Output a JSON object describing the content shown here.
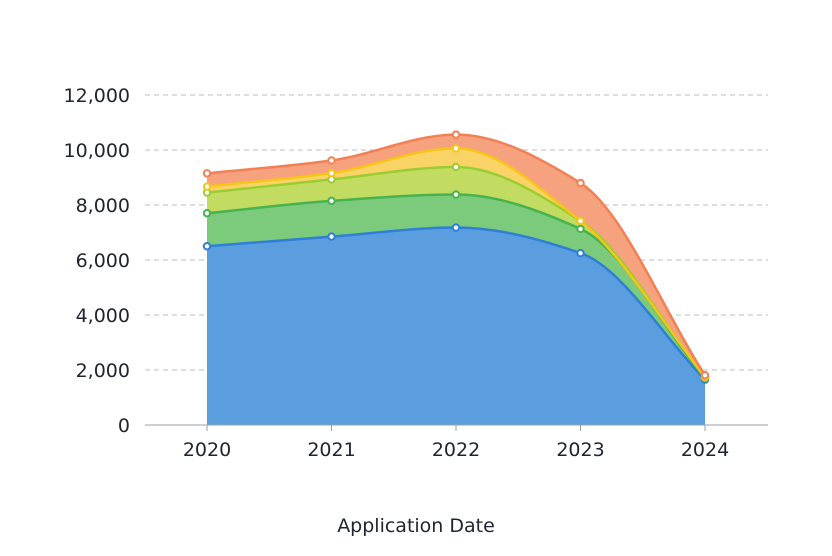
{
  "chart_data": {
    "type": "area",
    "stacked": true,
    "smooth": true,
    "title": "",
    "xlabel": "Application Date",
    "ylabel": "",
    "categories": [
      "2020",
      "2021",
      "2022",
      "2023",
      "2024"
    ],
    "ylim": [
      0,
      12000
    ],
    "yticks": [
      0,
      2000,
      4000,
      6000,
      8000,
      10000,
      12000
    ],
    "ytick_labels": [
      "0",
      "2,000",
      "4,000",
      "6,000",
      "8,000",
      "10,000",
      "12,000"
    ],
    "grid": true,
    "legend": "none",
    "series": [
      {
        "color": "#2f7fd6",
        "fill": "#5b9ee0",
        "values": [
          6500,
          6850,
          7180,
          6250,
          1650
        ]
      },
      {
        "color": "#46b34f",
        "fill": "#7ccb7c",
        "values": [
          1200,
          1300,
          1200,
          880,
          50
        ]
      },
      {
        "color": "#9acd32",
        "fill": "#c2dc62",
        "values": [
          750,
          780,
          1000,
          290,
          30
        ]
      },
      {
        "color": "#f5c518",
        "fill": "#fad366",
        "values": [
          220,
          230,
          680,
          0,
          20
        ]
      },
      {
        "color": "#f47f55",
        "fill": "#f7a27e",
        "values": [
          480,
          460,
          500,
          1380,
          60
        ]
      }
    ]
  }
}
